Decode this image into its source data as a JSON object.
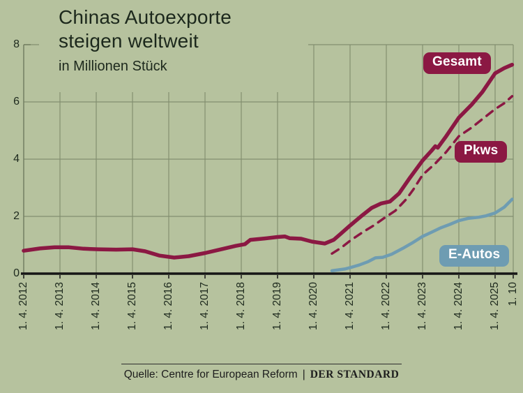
{
  "title": {
    "line1": "Chinas Autoexporte",
    "line2": "steigen weltweit",
    "subtitle": "in Millionen Stück"
  },
  "footer": {
    "source_label": "Quelle: Centre for European Reform",
    "separator": "|",
    "brand": "DER STANDARD"
  },
  "colors": {
    "background": "#b6c29e",
    "grid": "#838f70",
    "axis": "#161616",
    "axis_left": "#6e7a5e",
    "gesamt": "#8b1843",
    "pkws": "#8b1843",
    "eautos": "#6e9cb2",
    "label_text": "#ffffff"
  },
  "chart_data": {
    "type": "line",
    "title": "Chinas Autoexporte steigen weltweit",
    "subtitle": "in Millionen Stück",
    "ylabel": "Millionen Stück",
    "ylim": [
      0,
      8
    ],
    "y_ticks": [
      0,
      2,
      4,
      6,
      8
    ],
    "grid": true,
    "legend_position": "on-chart-labels",
    "x_ticks": [
      {
        "t": 2012.25,
        "label": "1. 4. 2012"
      },
      {
        "t": 2013.25,
        "label": "1. 4. 2013"
      },
      {
        "t": 2014.25,
        "label": "1. 4. 2014"
      },
      {
        "t": 2015.25,
        "label": "1. 4. 2015"
      },
      {
        "t": 2016.25,
        "label": "1. 4. 2016"
      },
      {
        "t": 2017.25,
        "label": "1. 4. 2017"
      },
      {
        "t": 2018.25,
        "label": "1. 4. 2018"
      },
      {
        "t": 2019.25,
        "label": "1. 4. 2019"
      },
      {
        "t": 2020.25,
        "label": "1. 4. 2020"
      },
      {
        "t": 2021.25,
        "label": "1. 4. 2021"
      },
      {
        "t": 2022.25,
        "label": "1. 4. 2022"
      },
      {
        "t": 2023.25,
        "label": "1. 4. 2023"
      },
      {
        "t": 2024.25,
        "label": "1. 4. 2024"
      },
      {
        "t": 2025.25,
        "label": "1. 4. 2025"
      },
      {
        "t": 2025.75,
        "label": "1. 10"
      }
    ],
    "series": [
      {
        "name": "Gesamt",
        "color": "#8b1843",
        "style": "solid",
        "width": 5.5,
        "points": [
          [
            2012.25,
            0.8
          ],
          [
            2012.7,
            0.88
          ],
          [
            2013.1,
            0.92
          ],
          [
            2013.5,
            0.92
          ],
          [
            2013.9,
            0.87
          ],
          [
            2014.3,
            0.85
          ],
          [
            2014.8,
            0.84
          ],
          [
            2015.25,
            0.85
          ],
          [
            2015.6,
            0.78
          ],
          [
            2016.0,
            0.63
          ],
          [
            2016.4,
            0.56
          ],
          [
            2016.8,
            0.61
          ],
          [
            2017.25,
            0.72
          ],
          [
            2017.7,
            0.85
          ],
          [
            2018.1,
            0.97
          ],
          [
            2018.35,
            1.03
          ],
          [
            2018.5,
            1.18
          ],
          [
            2018.9,
            1.23
          ],
          [
            2019.25,
            1.28
          ],
          [
            2019.45,
            1.3
          ],
          [
            2019.58,
            1.24
          ],
          [
            2019.9,
            1.22
          ],
          [
            2020.2,
            1.12
          ],
          [
            2020.55,
            1.05
          ],
          [
            2020.8,
            1.18
          ],
          [
            2021.0,
            1.4
          ],
          [
            2021.25,
            1.68
          ],
          [
            2021.6,
            2.05
          ],
          [
            2021.85,
            2.3
          ],
          [
            2022.1,
            2.45
          ],
          [
            2022.35,
            2.52
          ],
          [
            2022.6,
            2.8
          ],
          [
            2022.9,
            3.35
          ],
          [
            2023.25,
            3.95
          ],
          [
            2023.5,
            4.3
          ],
          [
            2023.6,
            4.45
          ],
          [
            2023.67,
            4.4
          ],
          [
            2023.9,
            4.8
          ],
          [
            2024.25,
            5.45
          ],
          [
            2024.6,
            5.9
          ],
          [
            2024.9,
            6.35
          ],
          [
            2025.25,
            7.0
          ],
          [
            2025.5,
            7.18
          ],
          [
            2025.72,
            7.3
          ]
        ]
      },
      {
        "name": "Pkws",
        "color": "#8b1843",
        "style": "dashed",
        "width": 3.5,
        "points": [
          [
            2020.75,
            0.7
          ],
          [
            2021.0,
            0.9
          ],
          [
            2021.25,
            1.15
          ],
          [
            2021.6,
            1.45
          ],
          [
            2021.9,
            1.68
          ],
          [
            2022.2,
            1.95
          ],
          [
            2022.5,
            2.2
          ],
          [
            2022.8,
            2.6
          ],
          [
            2023.0,
            2.95
          ],
          [
            2023.25,
            3.45
          ],
          [
            2023.6,
            3.85
          ],
          [
            2023.9,
            4.25
          ],
          [
            2024.25,
            4.8
          ],
          [
            2024.6,
            5.1
          ],
          [
            2024.9,
            5.4
          ],
          [
            2025.25,
            5.75
          ],
          [
            2025.5,
            5.95
          ],
          [
            2025.72,
            6.2
          ]
        ]
      },
      {
        "name": "E-Autos",
        "color": "#6e9cb2",
        "style": "solid",
        "width": 4.5,
        "points": [
          [
            2020.75,
            0.1
          ],
          [
            2021.1,
            0.16
          ],
          [
            2021.25,
            0.21
          ],
          [
            2021.5,
            0.3
          ],
          [
            2021.75,
            0.42
          ],
          [
            2021.95,
            0.55
          ],
          [
            2022.15,
            0.57
          ],
          [
            2022.4,
            0.68
          ],
          [
            2022.7,
            0.88
          ],
          [
            2023.0,
            1.1
          ],
          [
            2023.25,
            1.3
          ],
          [
            2023.5,
            1.45
          ],
          [
            2023.75,
            1.6
          ],
          [
            2024.0,
            1.72
          ],
          [
            2024.25,
            1.85
          ],
          [
            2024.5,
            1.93
          ],
          [
            2024.8,
            1.97
          ],
          [
            2025.0,
            2.02
          ],
          [
            2025.25,
            2.12
          ],
          [
            2025.5,
            2.32
          ],
          [
            2025.72,
            2.6
          ]
        ]
      }
    ]
  }
}
